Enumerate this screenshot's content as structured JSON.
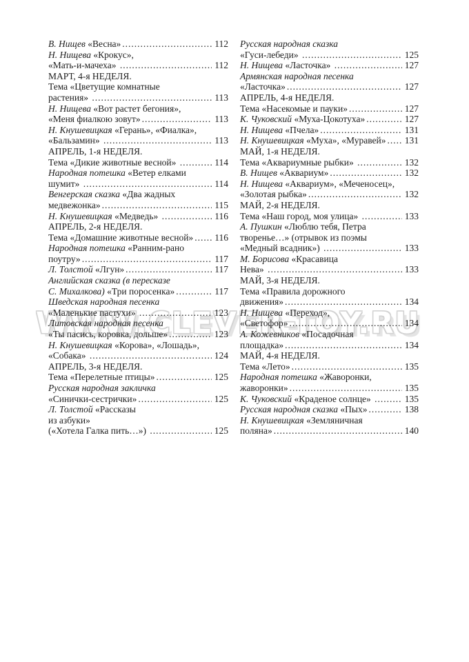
{
  "watermark": "WWW.CLEVER-TOY.RU",
  "colors": {
    "page_background": "#ffffff",
    "text": "#1c1c1c",
    "watermark_outline": "#d2d2d2"
  },
  "toc": {
    "left": [
      {
        "segments": [
          {
            "text": "В. Нищев",
            "italic": true
          },
          {
            "text": " «Весна»",
            "italic": false
          }
        ],
        "page": "112"
      },
      {
        "segments": [
          {
            "text": "Н. Нищева",
            "italic": true
          },
          {
            "text": " «Крокус»,",
            "italic": false
          }
        ],
        "page": null
      },
      {
        "segments": [
          {
            "text": "«Мать-и-мачеха» ",
            "italic": false
          }
        ],
        "page": "112"
      },
      {
        "segments": [
          {
            "text": "МАРТ, 4-я НЕДЕЛЯ.",
            "italic": false
          }
        ],
        "page": null
      },
      {
        "segments": [
          {
            "text": "Тема «Цветущие комнатные",
            "italic": false
          }
        ],
        "page": null
      },
      {
        "segments": [
          {
            "text": "растения» ",
            "italic": false
          }
        ],
        "page": "113"
      },
      {
        "segments": [
          {
            "text": "Н. Нищева",
            "italic": true
          },
          {
            "text": " «Вот растет бегония»,",
            "italic": false
          }
        ],
        "page": null
      },
      {
        "segments": [
          {
            "text": "«Меня фиалкою зовут»",
            "italic": false
          }
        ],
        "page": "113"
      },
      {
        "segments": [
          {
            "text": "Н. Кнушевицкая",
            "italic": true
          },
          {
            "text": " «Герань», «Фиалка»,",
            "italic": false
          }
        ],
        "page": null
      },
      {
        "segments": [
          {
            "text": "«Бальзамин» ",
            "italic": false
          }
        ],
        "page": "113"
      },
      {
        "segments": [
          {
            "text": "АПРЕЛЬ, 1-я НЕДЕЛЯ.",
            "italic": false
          }
        ],
        "page": null
      },
      {
        "segments": [
          {
            "text": "Тема «Дикие животные весной» ",
            "italic": false
          }
        ],
        "page": "114"
      },
      {
        "segments": [
          {
            "text": "Народная потешка",
            "italic": true
          },
          {
            "text": " «Ветер елками",
            "italic": false
          }
        ],
        "page": null
      },
      {
        "segments": [
          {
            "text": "шумит» ",
            "italic": false
          }
        ],
        "page": "114"
      },
      {
        "segments": [
          {
            "text": "Венгерская сказка",
            "italic": true
          },
          {
            "text": " «Два жадных",
            "italic": false
          }
        ],
        "page": null
      },
      {
        "segments": [
          {
            "text": "медвежонка»",
            "italic": false
          }
        ],
        "page": "115"
      },
      {
        "segments": [
          {
            "text": "Н. Кнушевицкая",
            "italic": true
          },
          {
            "text": " «Медведь» ",
            "italic": false
          }
        ],
        "page": "116"
      },
      {
        "segments": [
          {
            "text": "АПРЕЛЬ, 2-я НЕДЕЛЯ.",
            "italic": false
          }
        ],
        "page": null
      },
      {
        "segments": [
          {
            "text": "Тема «Домашние животные весной»",
            "italic": false
          }
        ],
        "page": "116"
      },
      {
        "segments": [
          {
            "text": "Народная потешка",
            "italic": true
          },
          {
            "text": " «Ранним-рано",
            "italic": false
          }
        ],
        "page": null
      },
      {
        "segments": [
          {
            "text": "поутру»",
            "italic": false
          }
        ],
        "page": "117"
      },
      {
        "segments": [
          {
            "text": "Л. Толстой",
            "italic": true
          },
          {
            "text": " «Лгун»",
            "italic": false
          }
        ],
        "page": "117"
      },
      {
        "segments": [
          {
            "text": "Английская сказка (в пересказе",
            "italic": true
          }
        ],
        "page": null
      },
      {
        "segments": [
          {
            "text": "С. Михалкова)",
            "italic": true
          },
          {
            "text": " «Три поросенка»",
            "italic": false
          }
        ],
        "page": "117"
      },
      {
        "segments": [
          {
            "text": "Шведская народная песенка",
            "italic": true
          }
        ],
        "page": null
      },
      {
        "segments": [
          {
            "text": "«Маленькие пастухи» ",
            "italic": false
          }
        ],
        "page": "123"
      },
      {
        "segments": [
          {
            "text": "Литовская народная песенка",
            "italic": true
          }
        ],
        "page": null
      },
      {
        "segments": [
          {
            "text": "«Ты пасись, коровка, дольше»",
            "italic": false
          }
        ],
        "page": "123"
      },
      {
        "segments": [
          {
            "text": "Н. Кнушевицкая",
            "italic": true
          },
          {
            "text": " «Корова», «Лошадь»,",
            "italic": false
          }
        ],
        "page": null
      },
      {
        "segments": [
          {
            "text": "«Собака» ",
            "italic": false
          }
        ],
        "page": "124"
      },
      {
        "segments": [
          {
            "text": "АПРЕЛЬ, 3-я НЕДЕЛЯ.",
            "italic": false
          }
        ],
        "page": null
      },
      {
        "segments": [
          {
            "text": "Тема «Перелетные птицы»",
            "italic": false
          }
        ],
        "page": "125"
      },
      {
        "segments": [
          {
            "text": "Русская народная закличка",
            "italic": true
          }
        ],
        "page": null
      },
      {
        "segments": [
          {
            "text": "«Синички-сестрички»",
            "italic": false
          }
        ],
        "page": "125"
      },
      {
        "segments": [
          {
            "text": "Л. Толстой",
            "italic": true
          },
          {
            "text": " «Рассказы",
            "italic": false
          }
        ],
        "page": null
      },
      {
        "segments": [
          {
            "text": "из азбуки»",
            "italic": false
          }
        ],
        "page": null
      },
      {
        "segments": [
          {
            "text": "(«Хотела Галка пить…») ",
            "italic": false
          }
        ],
        "page": "125"
      }
    ],
    "right": [
      {
        "segments": [
          {
            "text": "Русская народная сказка",
            "italic": true
          }
        ],
        "page": null
      },
      {
        "segments": [
          {
            "text": "«Гуси-лебеди» ",
            "italic": false
          }
        ],
        "page": "125"
      },
      {
        "segments": [
          {
            "text": "Н. Нищева",
            "italic": true
          },
          {
            "text": " «Ласточка» ",
            "italic": false
          }
        ],
        "page": "127"
      },
      {
        "segments": [
          {
            "text": "Армянская народная песенка",
            "italic": true
          }
        ],
        "page": null
      },
      {
        "segments": [
          {
            "text": "«Ласточка»",
            "italic": false
          }
        ],
        "page": "127"
      },
      {
        "segments": [
          {
            "text": "АПРЕЛЬ, 4-я НЕДЕЛЯ.",
            "italic": false
          }
        ],
        "page": null
      },
      {
        "segments": [
          {
            "text": "Тема «Насекомые и пауки»",
            "italic": false
          }
        ],
        "page": "127"
      },
      {
        "segments": [
          {
            "text": "К. Чуковский",
            "italic": true
          },
          {
            "text": " «Муха-Цокотуха»",
            "italic": false
          }
        ],
        "page": "127"
      },
      {
        "segments": [
          {
            "text": "Н. Нищева",
            "italic": true
          },
          {
            "text": " «Пчела»",
            "italic": false
          }
        ],
        "page": "131"
      },
      {
        "segments": [
          {
            "text": "Н. Кнушевицкая",
            "italic": true
          },
          {
            "text": " «Муха», «Муравей»",
            "italic": false
          }
        ],
        "page": "131"
      },
      {
        "segments": [
          {
            "text": "МАЙ, 1-я НЕДЕЛЯ.",
            "italic": false
          }
        ],
        "page": null
      },
      {
        "segments": [
          {
            "text": "Тема «Аквариумные рыбки» ",
            "italic": false
          }
        ],
        "page": "132"
      },
      {
        "segments": [
          {
            "text": "В. Нищев",
            "italic": true
          },
          {
            "text": " «Аквариум»",
            "italic": false
          }
        ],
        "page": "132"
      },
      {
        "segments": [
          {
            "text": "Н. Нищева",
            "italic": true
          },
          {
            "text": " «Аквариум», «Меченосец»,",
            "italic": false
          }
        ],
        "page": null
      },
      {
        "segments": [
          {
            "text": "«Золотая рыбка»",
            "italic": false
          }
        ],
        "page": "132"
      },
      {
        "segments": [
          {
            "text": "МАЙ, 2-я НЕДЕЛЯ.",
            "italic": false
          }
        ],
        "page": null
      },
      {
        "segments": [
          {
            "text": "Тема «Наш город, моя улица» ",
            "italic": false
          }
        ],
        "page": "133"
      },
      {
        "segments": [
          {
            "text": "А. Пушкин",
            "italic": true
          },
          {
            "text": " «Люблю тебя, Петра",
            "italic": false
          }
        ],
        "page": null
      },
      {
        "segments": [
          {
            "text": "творенье…» (отрывок из поэмы",
            "italic": false
          }
        ],
        "page": null
      },
      {
        "segments": [
          {
            "text": "«Медный всадник») ",
            "italic": false
          }
        ],
        "page": "133"
      },
      {
        "segments": [
          {
            "text": "М. Борисова",
            "italic": true
          },
          {
            "text": " «Красавица",
            "italic": false
          }
        ],
        "page": null
      },
      {
        "segments": [
          {
            "text": "Нева» ",
            "italic": false
          }
        ],
        "page": "133"
      },
      {
        "segments": [
          {
            "text": "МАЙ, 3-я НЕДЕЛЯ.",
            "italic": false
          }
        ],
        "page": null
      },
      {
        "segments": [
          {
            "text": "Тема «Правила дорожного",
            "italic": false
          }
        ],
        "page": null
      },
      {
        "segments": [
          {
            "text": "движения»",
            "italic": false
          }
        ],
        "page": "134"
      },
      {
        "segments": [
          {
            "text": "Н. Нищева",
            "italic": true
          },
          {
            "text": " «Переход»,",
            "italic": false
          }
        ],
        "page": null
      },
      {
        "segments": [
          {
            "text": "«Светофор»",
            "italic": false
          }
        ],
        "page": "134"
      },
      {
        "segments": [
          {
            "text": "А. Кожевников",
            "italic": true
          },
          {
            "text": " «Посадочная",
            "italic": false
          }
        ],
        "page": null
      },
      {
        "segments": [
          {
            "text": "площадка»",
            "italic": false
          }
        ],
        "page": "134"
      },
      {
        "segments": [
          {
            "text": "МАЙ, 4-я НЕДЕЛЯ.",
            "italic": false
          }
        ],
        "page": null
      },
      {
        "segments": [
          {
            "text": "Тема «Лето»",
            "italic": false
          }
        ],
        "page": "135"
      },
      {
        "segments": [
          {
            "text": "Народная потешка",
            "italic": true
          },
          {
            "text": " «Жаворонки,",
            "italic": false
          }
        ],
        "page": null
      },
      {
        "segments": [
          {
            "text": "жаворонки»",
            "italic": false
          }
        ],
        "page": "135"
      },
      {
        "segments": [
          {
            "text": "К. Чуковский",
            "italic": true
          },
          {
            "text": " «Краденое солнце» ",
            "italic": false
          }
        ],
        "page": "135"
      },
      {
        "segments": [
          {
            "text": "Русская народная сказка",
            "italic": true
          },
          {
            "text": " «Пых»",
            "italic": false
          }
        ],
        "page": "138"
      },
      {
        "segments": [
          {
            "text": "Н. Кнушевицкая",
            "italic": true
          },
          {
            "text": " «Земляничная",
            "italic": false
          }
        ],
        "page": null
      },
      {
        "segments": [
          {
            "text": "поляна»",
            "italic": false
          }
        ],
        "page": "140"
      }
    ]
  }
}
